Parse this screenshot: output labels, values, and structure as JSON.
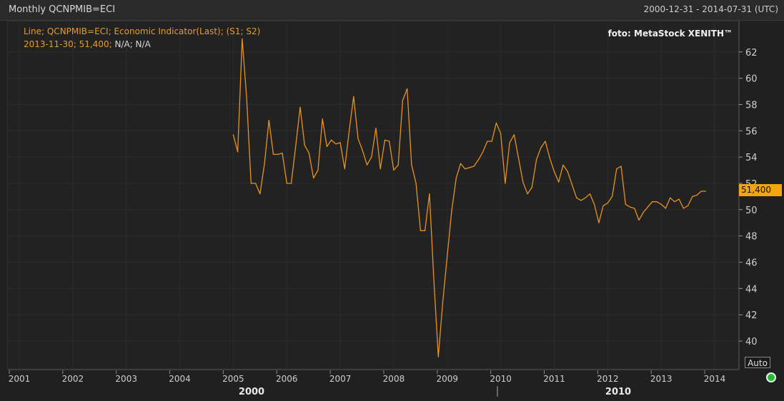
{
  "header": {
    "title": "Monthly QCNPMIB=ECI",
    "range": "2000-12-31 - 2014-07-31 (UTC)"
  },
  "legend": {
    "line1": "Line; QCNPMIB=ECI; Economic Indicator(Last); (S1; S2)",
    "line2_value": "2013-11-30; 51,400;",
    "line2_na": "N/A; N/A"
  },
  "credit": "foto: MetaStock XENITH™",
  "last_value_label": "51,400",
  "auto_label": "Auto",
  "colors": {
    "line": "#e8921e",
    "accent": "#f2a60b",
    "status": "#2fb536"
  },
  "chart_data": {
    "type": "line",
    "title": "",
    "xlabel": "",
    "ylabel": "",
    "ylim": [
      38,
      63
    ],
    "y_ticks": [
      40,
      42,
      44,
      46,
      48,
      50,
      52,
      54,
      56,
      58,
      60,
      62
    ],
    "x_ticks": [
      "2001",
      "2002",
      "2003",
      "2004",
      "2005",
      "2006",
      "2007",
      "2008",
      "2009",
      "2010",
      "2011",
      "2012",
      "2013",
      "2014"
    ],
    "x_decades": [
      "2000",
      "2010"
    ],
    "grid": true,
    "series": [
      {
        "name": "",
        "x": [
          "2005-01",
          "2005-02",
          "2005-03",
          "2005-04",
          "2005-05",
          "2005-06",
          "2005-07",
          "2005-08",
          "2005-09",
          "2005-10",
          "2005-11",
          "2005-12",
          "2006-01",
          "2006-02",
          "2006-03",
          "2006-04",
          "2006-05",
          "2006-06",
          "2006-07",
          "2006-08",
          "2006-09",
          "2006-10",
          "2006-11",
          "2006-12",
          "2007-01",
          "2007-02",
          "2007-03",
          "2007-04",
          "2007-05",
          "2007-06",
          "2007-07",
          "2007-08",
          "2007-09",
          "2007-10",
          "2007-11",
          "2007-12",
          "2008-01",
          "2008-02",
          "2008-03",
          "2008-04",
          "2008-05",
          "2008-06",
          "2008-07",
          "2008-08",
          "2008-09",
          "2008-10",
          "2008-11",
          "2008-12",
          "2009-01",
          "2009-02",
          "2009-03",
          "2009-04",
          "2009-05",
          "2009-06",
          "2009-07",
          "2009-08",
          "2009-09",
          "2009-10",
          "2009-11",
          "2009-12",
          "2010-01",
          "2010-02",
          "2010-03",
          "2010-04",
          "2010-05",
          "2010-06",
          "2010-07",
          "2010-08",
          "2010-09",
          "2010-10",
          "2010-11",
          "2010-12",
          "2011-01",
          "2011-02",
          "2011-03",
          "2011-04",
          "2011-05",
          "2011-06",
          "2011-07",
          "2011-08",
          "2011-09",
          "2011-10",
          "2011-11",
          "2011-12",
          "2012-01",
          "2012-02",
          "2012-03",
          "2012-04",
          "2012-05",
          "2012-06",
          "2012-07",
          "2012-08",
          "2012-09",
          "2012-10",
          "2012-11",
          "2012-12",
          "2013-01",
          "2013-02",
          "2013-03",
          "2013-04",
          "2013-05",
          "2013-06",
          "2013-07",
          "2013-08",
          "2013-09",
          "2013-10",
          "2013-11"
        ],
        "values": [
          55.7,
          54.4,
          63.0,
          58.5,
          52.0,
          52.0,
          51.2,
          53.5,
          56.8,
          54.2,
          54.2,
          54.3,
          52.0,
          52.0,
          54.8,
          57.8,
          54.9,
          54.3,
          52.4,
          53.0,
          56.9,
          54.8,
          55.3,
          55.0,
          55.1,
          53.1,
          56.0,
          58.6,
          55.4,
          54.5,
          53.4,
          54.0,
          56.2,
          53.1,
          55.3,
          55.2,
          53.0,
          53.4,
          58.3,
          59.2,
          53.4,
          52.0,
          48.4,
          48.4,
          51.2,
          44.6,
          38.8,
          43.0,
          46.5,
          49.9,
          52.4,
          53.5,
          53.1,
          53.2,
          53.3,
          53.8,
          54.4,
          55.2,
          55.2,
          56.6,
          55.8,
          52.0,
          55.1,
          55.7,
          53.9,
          52.1,
          51.2,
          51.7,
          53.8,
          54.7,
          55.2,
          53.9,
          52.9,
          52.1,
          53.4,
          52.9,
          51.9,
          50.9,
          50.7,
          50.9,
          51.2,
          50.4,
          49.0,
          50.3,
          50.5,
          51.0,
          53.1,
          53.3,
          50.4,
          50.2,
          50.1,
          49.2,
          49.8,
          50.2,
          50.6,
          50.6,
          50.4,
          50.1,
          50.9,
          50.6,
          50.8,
          50.1,
          50.3,
          51.0,
          51.1,
          51.4,
          51.4
        ]
      }
    ]
  }
}
